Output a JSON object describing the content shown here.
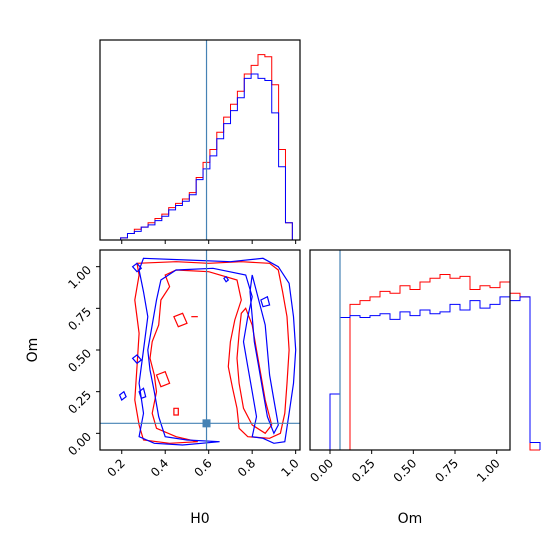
{
  "chart_data": [
    {
      "type": "histogram",
      "panel": "H0 marginal (top-left)",
      "x_range": [
        0.1,
        1.05
      ],
      "bin_width": 0.0316,
      "truth_line": 0.59,
      "series": [
        {
          "color": "#ff0000",
          "bins_x0": 0.1,
          "values": [
            0,
            0,
            0,
            0.01,
            0.03,
            0.05,
            0.06,
            0.08,
            0.1,
            0.12,
            0.15,
            0.17,
            0.19,
            0.22,
            0.29,
            0.36,
            0.42,
            0.5,
            0.57,
            0.63,
            0.69,
            0.77,
            0.81,
            0.86,
            0.85,
            0.72,
            0.42,
            0.08
          ]
        },
        {
          "color": "#0000ff",
          "bins_x0": 0.1,
          "values": [
            0,
            0,
            0,
            0.01,
            0.03,
            0.04,
            0.06,
            0.07,
            0.09,
            0.11,
            0.14,
            0.16,
            0.18,
            0.21,
            0.28,
            0.33,
            0.39,
            0.47,
            0.54,
            0.6,
            0.66,
            0.75,
            0.77,
            0.75,
            0.74,
            0.59,
            0.34,
            0.08
          ]
        }
      ]
    },
    {
      "type": "contour",
      "panel": "H0 vs Om joint (bottom-left)",
      "xlabel": "H0",
      "ylabel": "Om",
      "xlim": [
        0.1,
        1.02
      ],
      "ylim": [
        -0.1,
        1.1
      ],
      "xticks": [
        "0.2",
        "0.4",
        "0.6",
        "0.8",
        "1.0"
      ],
      "yticks": [
        "0.00",
        "0.25",
        "0.50",
        "0.75",
        "1.00"
      ],
      "truth_point": {
        "H0": 0.59,
        "Om": 0.06
      },
      "series": [
        {
          "color": "#ff0000",
          "name": ""
        },
        {
          "color": "#0000ff",
          "name": ""
        }
      ]
    },
    {
      "type": "histogram",
      "panel": "Om marginal (bottom-right)",
      "xlabel": "Om",
      "x_range": [
        -0.12,
        1.08
      ],
      "xticks": [
        "0.00",
        "0.25",
        "0.50",
        "0.75",
        "1.00"
      ],
      "truth_line": 0.06,
      "series": [
        {
          "color": "#ff0000",
          "bins_x0": -0.12,
          "bin_width": 0.06,
          "values": [
            0,
            0,
            0,
            0,
            0.78,
            0.8,
            0.82,
            0.85,
            0.84,
            0.88,
            0.86,
            0.9,
            0.92,
            0.94,
            0.92,
            0.93,
            0.86,
            0.88,
            0.87,
            0.9,
            0.84,
            0.82,
            0
          ]
        },
        {
          "color": "#0000ff",
          "bins_x0": -0.12,
          "bin_width": 0.06,
          "values": [
            0,
            0,
            0.3,
            0.71,
            0.72,
            0.71,
            0.72,
            0.73,
            0.7,
            0.74,
            0.72,
            0.75,
            0.73,
            0.74,
            0.78,
            0.75,
            0.8,
            0.76,
            0.78,
            0.82,
            0.8,
            0.82,
            0.04
          ]
        }
      ]
    }
  ]
}
